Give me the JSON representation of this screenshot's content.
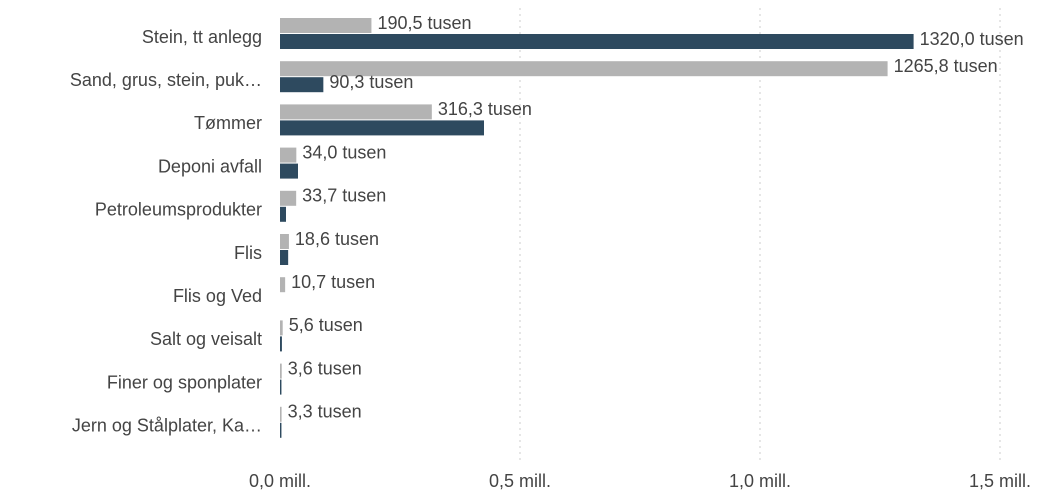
{
  "chart_data": {
    "type": "barh",
    "categories": [
      "Stein, tt anlegg",
      "Sand, grus, stein, puk…",
      "Tømmer",
      "Deponi avfall",
      "Petroleumsprodukter",
      "Flis",
      "Flis og Ved",
      "Salt og veisalt",
      "Finer og sponplater",
      "Jern og Stålplater, Ka…"
    ],
    "series": [
      {
        "color": "#b3b3b3",
        "values": [
          0.1905,
          1.2658,
          0.3163,
          0.034,
          0.0337,
          0.0186,
          0.0107,
          0.0056,
          0.0036,
          0.0033
        ],
        "value_labels": [
          "190,5 tusen",
          "1265,8 tusen",
          "316,3 tusen",
          "34,0 tusen",
          "33,7 tusen",
          "18,6 tusen",
          "10,7 tusen",
          "5,6 tusen",
          "3,6 tusen",
          "3,3 tusen"
        ]
      },
      {
        "color": "#2e4a5f",
        "values": [
          1.32,
          0.0903,
          0.425,
          0.0375,
          0.0125,
          0.017,
          0,
          0.004,
          0.003,
          0.003
        ],
        "value_labels": [
          "1320,0 tusen",
          "90,3 tusen",
          null,
          null,
          null,
          null,
          null,
          null,
          null,
          null
        ]
      }
    ],
    "xlim": [
      0,
      1.5
    ],
    "xticks": [
      {
        "value": 0,
        "label": "0,0 mill."
      },
      {
        "value": 0.5,
        "label": "0,5 mill."
      },
      {
        "value": 1,
        "label": "1,0 mill."
      },
      {
        "value": 1.5,
        "label": "1,5 mill."
      }
    ],
    "grid": true
  }
}
